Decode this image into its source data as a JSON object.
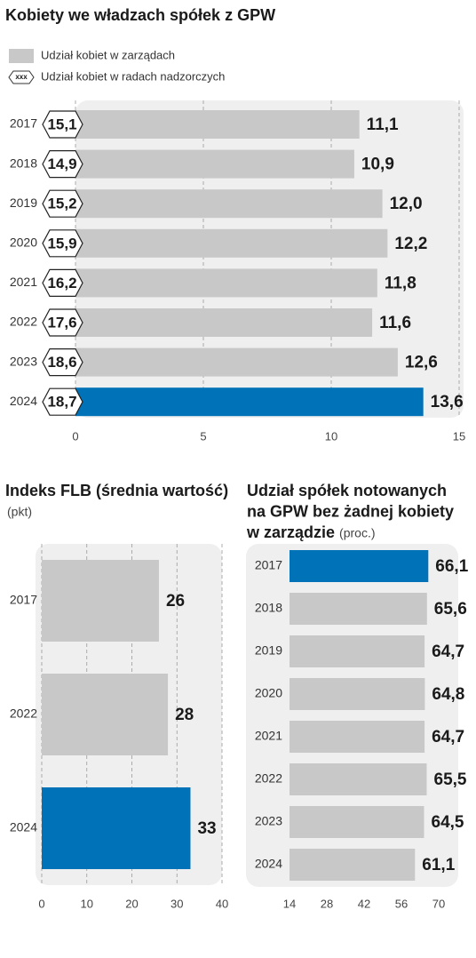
{
  "chart_data": [
    {
      "type": "hbar",
      "title": "Kobiety we władzach spółek z GPW",
      "categories": [
        "2017",
        "2018",
        "2019",
        "2020",
        "2021",
        "2022",
        "2023",
        "2024"
      ],
      "series": [
        {
          "name": "Udział kobiet w zarządach",
          "color": "#c8c8c8",
          "colors": [
            "#c8c8c8",
            "#c8c8c8",
            "#c8c8c8",
            "#c8c8c8",
            "#c8c8c8",
            "#c8c8c8",
            "#c8c8c8",
            "#0072b8"
          ],
          "values": [
            11.1,
            10.9,
            12.0,
            12.2,
            11.8,
            11.6,
            12.6,
            13.6
          ],
          "value_labels": [
            "11,1",
            "10,9",
            "12,0",
            "12,2",
            "11,8",
            "11,6",
            "12,6",
            "13,6"
          ]
        },
        {
          "name": "Udział kobiet w radach nadzorczych",
          "style": "tag",
          "marker_text": "xxx",
          "values": [
            15.1,
            14.9,
            15.2,
            15.9,
            16.2,
            17.6,
            18.6,
            18.7
          ],
          "value_labels": [
            "15,1",
            "14,9",
            "15,2",
            "15,9",
            "16,2",
            "17,6",
            "18,6",
            "18,7"
          ]
        }
      ],
      "xlim": [
        0,
        15
      ],
      "xticks": [
        0,
        5,
        10,
        15
      ],
      "grid": true
    },
    {
      "type": "hbar",
      "title": "Indeks FLB (średnia wartość)",
      "subtitle": "(pkt)",
      "categories": [
        "2017",
        "2022",
        "2024"
      ],
      "series": [
        {
          "colors": [
            "#c8c8c8",
            "#c8c8c8",
            "#0072b8"
          ],
          "values": [
            26,
            28,
            33
          ]
        }
      ],
      "xlim": [
        0,
        40
      ],
      "xticks": [
        0,
        10,
        20,
        30,
        40
      ],
      "grid": true
    },
    {
      "type": "hbar",
      "title": [
        "Udział spółek notowanych",
        "na GPW bez żadnej kobiety",
        "w zarządzie"
      ],
      "subtitle": "(proc.)",
      "categories": [
        "2017",
        "2018",
        "2019",
        "2020",
        "2021",
        "2022",
        "2023",
        "2024"
      ],
      "series": [
        {
          "colors": [
            "#0072b8",
            "#c8c8c8",
            "#c8c8c8",
            "#c8c8c8",
            "#c8c8c8",
            "#c8c8c8",
            "#c8c8c8",
            "#c8c8c8"
          ],
          "values": [
            66.1,
            65.6,
            64.7,
            64.8,
            64.7,
            65.5,
            64.5,
            61.1
          ],
          "value_labels": [
            "66,1",
            "65,6",
            "64,7",
            "64,8",
            "64,7",
            "65,5",
            "64,5",
            "61,1"
          ]
        }
      ],
      "xlim": [
        14,
        70
      ],
      "xticks": [
        14,
        28,
        42,
        56,
        70
      ],
      "grid": false
    }
  ]
}
